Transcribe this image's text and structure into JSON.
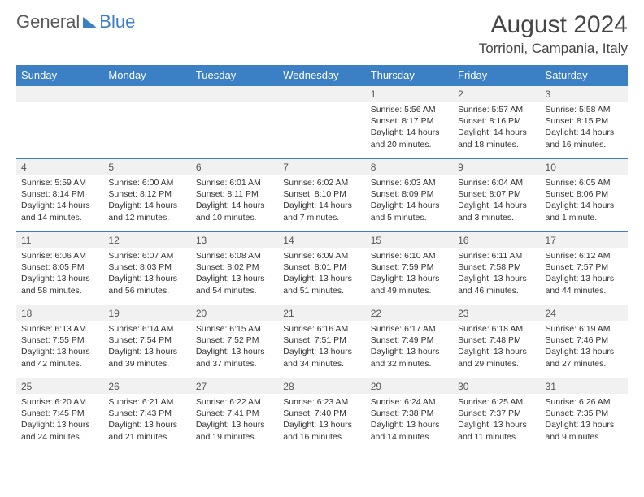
{
  "brand": {
    "part1": "General",
    "part2": "Blue"
  },
  "title": "August 2024",
  "location": "Torrioni, Campania, Italy",
  "style": {
    "header_bg": "#3b7fc4",
    "header_fg": "#ffffff",
    "border_color": "#3b7fc4",
    "daynum_bg": "#f1f1f1",
    "page_bg": "#ffffff",
    "text_color": "#333333",
    "title_color": "#454545",
    "font_family": "Arial",
    "th_fontsize": 13,
    "cell_fontsize": 10.5,
    "title_fontsize": 30,
    "location_fontsize": 17
  },
  "weekdays": [
    "Sunday",
    "Monday",
    "Tuesday",
    "Wednesday",
    "Thursday",
    "Friday",
    "Saturday"
  ],
  "weeks": [
    [
      null,
      null,
      null,
      null,
      {
        "d": "1",
        "sr": "5:56 AM",
        "ss": "8:17 PM",
        "dl": "14 hours and 20 minutes."
      },
      {
        "d": "2",
        "sr": "5:57 AM",
        "ss": "8:16 PM",
        "dl": "14 hours and 18 minutes."
      },
      {
        "d": "3",
        "sr": "5:58 AM",
        "ss": "8:15 PM",
        "dl": "14 hours and 16 minutes."
      }
    ],
    [
      {
        "d": "4",
        "sr": "5:59 AM",
        "ss": "8:14 PM",
        "dl": "14 hours and 14 minutes."
      },
      {
        "d": "5",
        "sr": "6:00 AM",
        "ss": "8:12 PM",
        "dl": "14 hours and 12 minutes."
      },
      {
        "d": "6",
        "sr": "6:01 AM",
        "ss": "8:11 PM",
        "dl": "14 hours and 10 minutes."
      },
      {
        "d": "7",
        "sr": "6:02 AM",
        "ss": "8:10 PM",
        "dl": "14 hours and 7 minutes."
      },
      {
        "d": "8",
        "sr": "6:03 AM",
        "ss": "8:09 PM",
        "dl": "14 hours and 5 minutes."
      },
      {
        "d": "9",
        "sr": "6:04 AM",
        "ss": "8:07 PM",
        "dl": "14 hours and 3 minutes."
      },
      {
        "d": "10",
        "sr": "6:05 AM",
        "ss": "8:06 PM",
        "dl": "14 hours and 1 minute."
      }
    ],
    [
      {
        "d": "11",
        "sr": "6:06 AM",
        "ss": "8:05 PM",
        "dl": "13 hours and 58 minutes."
      },
      {
        "d": "12",
        "sr": "6:07 AM",
        "ss": "8:03 PM",
        "dl": "13 hours and 56 minutes."
      },
      {
        "d": "13",
        "sr": "6:08 AM",
        "ss": "8:02 PM",
        "dl": "13 hours and 54 minutes."
      },
      {
        "d": "14",
        "sr": "6:09 AM",
        "ss": "8:01 PM",
        "dl": "13 hours and 51 minutes."
      },
      {
        "d": "15",
        "sr": "6:10 AM",
        "ss": "7:59 PM",
        "dl": "13 hours and 49 minutes."
      },
      {
        "d": "16",
        "sr": "6:11 AM",
        "ss": "7:58 PM",
        "dl": "13 hours and 46 minutes."
      },
      {
        "d": "17",
        "sr": "6:12 AM",
        "ss": "7:57 PM",
        "dl": "13 hours and 44 minutes."
      }
    ],
    [
      {
        "d": "18",
        "sr": "6:13 AM",
        "ss": "7:55 PM",
        "dl": "13 hours and 42 minutes."
      },
      {
        "d": "19",
        "sr": "6:14 AM",
        "ss": "7:54 PM",
        "dl": "13 hours and 39 minutes."
      },
      {
        "d": "20",
        "sr": "6:15 AM",
        "ss": "7:52 PM",
        "dl": "13 hours and 37 minutes."
      },
      {
        "d": "21",
        "sr": "6:16 AM",
        "ss": "7:51 PM",
        "dl": "13 hours and 34 minutes."
      },
      {
        "d": "22",
        "sr": "6:17 AM",
        "ss": "7:49 PM",
        "dl": "13 hours and 32 minutes."
      },
      {
        "d": "23",
        "sr": "6:18 AM",
        "ss": "7:48 PM",
        "dl": "13 hours and 29 minutes."
      },
      {
        "d": "24",
        "sr": "6:19 AM",
        "ss": "7:46 PM",
        "dl": "13 hours and 27 minutes."
      }
    ],
    [
      {
        "d": "25",
        "sr": "6:20 AM",
        "ss": "7:45 PM",
        "dl": "13 hours and 24 minutes."
      },
      {
        "d": "26",
        "sr": "6:21 AM",
        "ss": "7:43 PM",
        "dl": "13 hours and 21 minutes."
      },
      {
        "d": "27",
        "sr": "6:22 AM",
        "ss": "7:41 PM",
        "dl": "13 hours and 19 minutes."
      },
      {
        "d": "28",
        "sr": "6:23 AM",
        "ss": "7:40 PM",
        "dl": "13 hours and 16 minutes."
      },
      {
        "d": "29",
        "sr": "6:24 AM",
        "ss": "7:38 PM",
        "dl": "13 hours and 14 minutes."
      },
      {
        "d": "30",
        "sr": "6:25 AM",
        "ss": "7:37 PM",
        "dl": "13 hours and 11 minutes."
      },
      {
        "d": "31",
        "sr": "6:26 AM",
        "ss": "7:35 PM",
        "dl": "13 hours and 9 minutes."
      }
    ]
  ],
  "labels": {
    "sunrise": "Sunrise:",
    "sunset": "Sunset:",
    "daylight": "Daylight:"
  }
}
